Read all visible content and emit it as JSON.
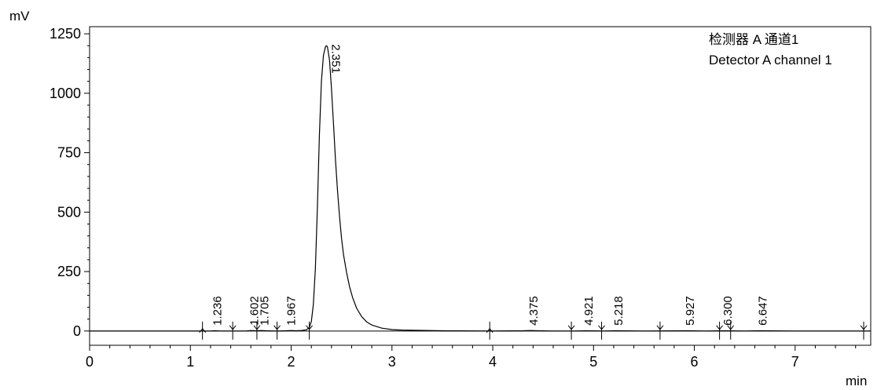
{
  "chart_data": {
    "type": "line",
    "title": "",
    "xlabel": "min",
    "ylabel": "mV",
    "xlim": [
      0,
      7.75
    ],
    "ylim": [
      -60,
      1280
    ],
    "x_ticks": [
      0,
      1,
      2,
      3,
      4,
      5,
      6,
      7
    ],
    "x_tick_labels": [
      "0",
      "1",
      "2",
      "3",
      "4",
      "5",
      "6",
      "7"
    ],
    "y_ticks": [
      0,
      250,
      500,
      750,
      1000,
      1250
    ],
    "y_tick_labels": [
      "0",
      "250",
      "500",
      "750",
      "1000",
      "1250"
    ],
    "legend": {
      "position": "top-right",
      "lines": [
        "检测器 A 通道1",
        "Detector A channel 1"
      ]
    },
    "series": [
      {
        "x": [
          0,
          1.0,
          1.2,
          1.24,
          1.3,
          1.42,
          1.55,
          1.6,
          1.65,
          1.7,
          1.75,
          1.85,
          1.95,
          2.0,
          2.05,
          2.1,
          2.15,
          2.18,
          2.2,
          2.22,
          2.24,
          2.26,
          2.28,
          2.3,
          2.32,
          2.34,
          2.351,
          2.36,
          2.38,
          2.4,
          2.42,
          2.44,
          2.46,
          2.48,
          2.5,
          2.52,
          2.55,
          2.58,
          2.61,
          2.65,
          2.7,
          2.75,
          2.8,
          2.9,
          3.0,
          3.1,
          3.2,
          3.5,
          4.0,
          4.3,
          4.375,
          4.45,
          4.6,
          4.8,
          4.921,
          5.1,
          5.218,
          5.5,
          5.927,
          6.1,
          6.3,
          6.5,
          6.647,
          7.0,
          7.5,
          7.75
        ],
        "y": [
          0,
          0,
          0,
          1,
          0,
          0,
          0,
          2,
          1,
          2,
          1,
          0,
          1,
          2,
          1,
          2,
          5,
          15,
          40,
          110,
          260,
          520,
          820,
          1050,
          1160,
          1195,
          1200,
          1195,
          1140,
          1020,
          870,
          720,
          590,
          480,
          390,
          320,
          245,
          185,
          140,
          95,
          60,
          38,
          25,
          12,
          6,
          4,
          3,
          1,
          0,
          1,
          2,
          1,
          0,
          0,
          1,
          0,
          1,
          0,
          1,
          0,
          1,
          0,
          1,
          0,
          0,
          0
        ],
        "color": "#000000"
      }
    ],
    "peak_labels": [
      {
        "x": 1.236,
        "label": "1.236"
      },
      {
        "x": 1.602,
        "label": "1.602"
      },
      {
        "x": 1.705,
        "label": "1.705"
      },
      {
        "x": 1.967,
        "label": "1.967"
      },
      {
        "x": 2.351,
        "label": "2.351"
      },
      {
        "x": 4.375,
        "label": "4.375"
      },
      {
        "x": 4.921,
        "label": "4.921"
      },
      {
        "x": 5.218,
        "label": "5.218"
      },
      {
        "x": 5.927,
        "label": "5.927"
      },
      {
        "x": 6.3,
        "label": "6.300"
      },
      {
        "x": 6.647,
        "label": "6.647"
      }
    ],
    "baseline_markers": [
      {
        "x": 1.12,
        "dir": "up"
      },
      {
        "x": 1.42,
        "dir": "down"
      },
      {
        "x": 1.66,
        "dir": "down"
      },
      {
        "x": 1.86,
        "dir": "down"
      },
      {
        "x": 2.18,
        "dir": "down"
      },
      {
        "x": 3.97,
        "dir": "up"
      },
      {
        "x": 4.78,
        "dir": "down"
      },
      {
        "x": 5.08,
        "dir": "down"
      },
      {
        "x": 5.66,
        "dir": "down"
      },
      {
        "x": 6.25,
        "dir": "down"
      },
      {
        "x": 6.36,
        "dir": "down"
      },
      {
        "x": 7.68,
        "dir": "down"
      }
    ],
    "grid": false
  }
}
